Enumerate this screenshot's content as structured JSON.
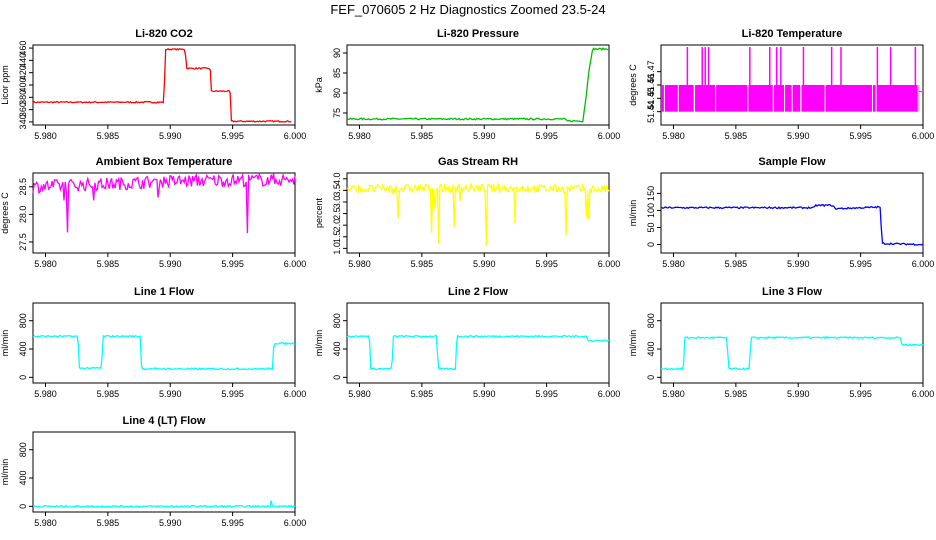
{
  "title": "FEF_070605  2 Hz Diagnostics Zoomed 23.5-24",
  "chart_data": [
    {
      "type": "line",
      "title": "Li-820 CO2",
      "ylabel": "Licor ppm",
      "color": "#ff0000",
      "xlim": [
        5.979,
        6.0
      ],
      "xticks": [
        "5.980",
        "5.985",
        "5.990",
        "5.995",
        "6.000"
      ],
      "ylim": [
        335,
        465
      ],
      "yticks": [
        "340",
        "360",
        "380",
        "400",
        "420",
        "440",
        "460"
      ],
      "x": [
        5.979,
        5.9895,
        5.9896,
        5.9912,
        5.9913,
        5.9932,
        5.9933,
        5.9948,
        5.9949,
        5.9997
      ],
      "y": [
        372,
        372,
        458,
        458,
        427,
        427,
        390,
        390,
        341,
        341
      ]
    },
    {
      "type": "line",
      "title": "Li-820 Pressure",
      "ylabel": "kPa",
      "color": "#00c000",
      "xlim": [
        5.979,
        6.0
      ],
      "xticks": [
        "5.980",
        "5.985",
        "5.990",
        "5.995",
        "6.000"
      ],
      "ylim": [
        72,
        92
      ],
      "yticks": [
        "75",
        "80",
        "85",
        "90"
      ],
      "x": [
        5.979,
        5.9965,
        5.9966,
        5.9979,
        5.9982,
        5.9984,
        5.9987,
        6.0
      ],
      "y": [
        73.5,
        73.5,
        73,
        73,
        80,
        86,
        91,
        91
      ]
    },
    {
      "type": "line",
      "title": "Li-820 Temperature",
      "ylabel": "degrees C",
      "color": "#ff00ff",
      "xlim": [
        5.979,
        6.0
      ],
      "xticks": [
        "5.980",
        "5.985",
        "5.990",
        "5.995",
        "6.000"
      ],
      "ylim": [
        51.43,
        51.49
      ],
      "yticks": [
        "51.44",
        "51.45",
        "51.46",
        "51.47"
      ],
      "x": [
        5.979,
        5.9865,
        5.9866,
        5.9949,
        5.995,
        5.9999
      ],
      "y": [
        51.455,
        51.455,
        51.455,
        51.455,
        51.455,
        51.455
      ]
    },
    {
      "type": "line",
      "title": "Ambient Box Temperature",
      "ylabel": "degrees C",
      "color": "#ff00ff",
      "xlim": [
        5.979,
        6.0
      ],
      "xticks": [
        "5.980",
        "5.985",
        "5.990",
        "5.995",
        "6.000"
      ],
      "ylim": [
        27.3,
        28.75
      ],
      "yticks": [
        "27.5",
        "28.0",
        "28.5"
      ],
      "x": [
        5.979,
        5.982,
        5.985,
        5.99,
        5.995,
        6.0
      ],
      "y": [
        28.5,
        28.53,
        28.55,
        28.6,
        28.62,
        28.63
      ]
    },
    {
      "type": "line",
      "title": "Gas Stream RH",
      "ylabel": "percent",
      "color": "#ffff00",
      "xlim": [
        5.979,
        6.0
      ],
      "xticks": [
        "5.980",
        "5.985",
        "5.990",
        "5.995",
        "6.000"
      ],
      "ylim": [
        0.8,
        4.25
      ],
      "yticks": [
        "1.0",
        "1.5",
        "2.0",
        "2.5",
        "3.0",
        "3.5",
        "4.0"
      ],
      "x": [
        5.979,
        5.985,
        5.99,
        5.995,
        6.0
      ],
      "y": [
        3.55,
        3.6,
        3.6,
        3.58,
        3.55
      ]
    },
    {
      "type": "line",
      "title": "Sample Flow",
      "ylabel": "ml/min",
      "color": "#0000ff",
      "xlim": [
        5.979,
        6.0
      ],
      "xticks": [
        "5.980",
        "5.985",
        "5.990",
        "5.995",
        "6.000"
      ],
      "ylim": [
        -25,
        210
      ],
      "yticks": [
        "0",
        "50",
        "100",
        "150"
      ],
      "x": [
        5.979,
        5.9913,
        5.9914,
        5.9928,
        5.9929,
        5.9966,
        5.9967,
        6.0
      ],
      "y": [
        108,
        108,
        115,
        115,
        105,
        110,
        3,
        0
      ]
    },
    {
      "type": "line",
      "title": "Line 1 Flow",
      "ylabel": "ml/min",
      "color": "#00ffff",
      "xlim": [
        5.979,
        6.0
      ],
      "xticks": [
        "5.980",
        "5.985",
        "5.990",
        "5.995",
        "6.000"
      ],
      "ylim": [
        -80,
        1050
      ],
      "yticks": [
        "0",
        "400",
        "800"
      ],
      "x": [
        5.979,
        5.9826,
        5.9827,
        5.9845,
        5.9846,
        5.9876,
        5.9877,
        5.9982,
        5.9983,
        6.0
      ],
      "y": [
        580,
        580,
        130,
        130,
        580,
        580,
        120,
        120,
        480,
        480
      ]
    },
    {
      "type": "line",
      "title": "Line 2 Flow",
      "ylabel": "ml/min",
      "color": "#00ffff",
      "xlim": [
        5.979,
        6.0
      ],
      "xticks": [
        "5.980",
        "5.985",
        "5.990",
        "5.995",
        "6.000"
      ],
      "ylim": [
        -80,
        1050
      ],
      "yticks": [
        "0",
        "400",
        "800"
      ],
      "x": [
        5.979,
        5.9808,
        5.9809,
        5.9826,
        5.9827,
        5.9862,
        5.9863,
        5.9877,
        5.9878,
        5.9982,
        5.9983,
        6.0
      ],
      "y": [
        580,
        580,
        120,
        120,
        580,
        580,
        120,
        120,
        580,
        580,
        520,
        520
      ]
    },
    {
      "type": "line",
      "title": "Line 3 Flow",
      "ylabel": "ml/min",
      "color": "#00ffff",
      "xlim": [
        5.979,
        6.0
      ],
      "xticks": [
        "5.980",
        "5.985",
        "5.990",
        "5.995",
        "6.000"
      ],
      "ylim": [
        -80,
        1050
      ],
      "yticks": [
        "0",
        "400",
        "800"
      ],
      "x": [
        5.979,
        5.9808,
        5.9809,
        5.9843,
        5.9844,
        5.9861,
        5.9862,
        5.9982,
        5.9983,
        6.0
      ],
      "y": [
        120,
        120,
        560,
        560,
        120,
        120,
        560,
        560,
        460,
        460
      ]
    },
    {
      "type": "line",
      "title": "Line 4 (LT) Flow",
      "ylabel": "ml/min",
      "color": "#00ffff",
      "xlim": [
        5.979,
        6.0
      ],
      "xticks": [
        "5.980",
        "5.985",
        "5.990",
        "5.995",
        "6.000"
      ],
      "ylim": [
        -80,
        1050
      ],
      "yticks": [
        "0",
        "400",
        "800"
      ],
      "x": [
        5.979,
        5.998,
        5.9981,
        5.9982,
        6.0
      ],
      "y": [
        0,
        0,
        100,
        0,
        0
      ]
    }
  ]
}
